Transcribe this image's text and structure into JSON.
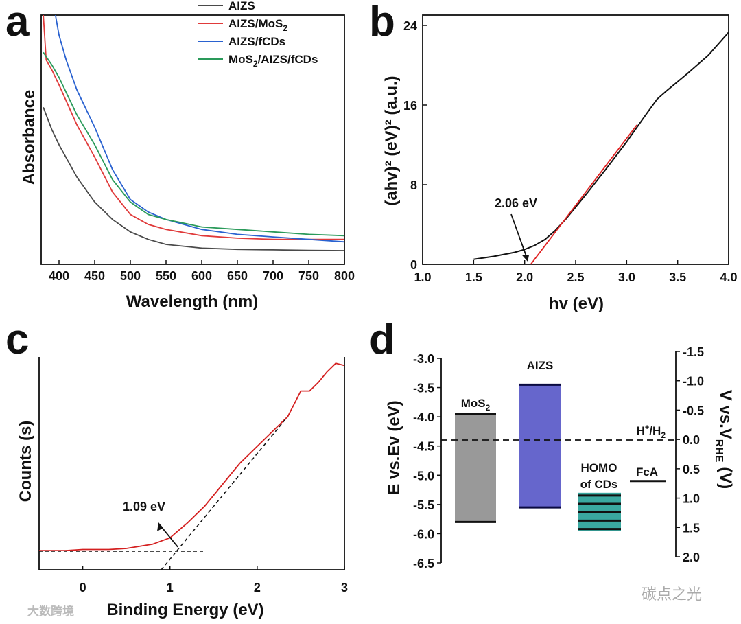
{
  "chart_data": [
    {
      "panel": "a",
      "type": "line",
      "xlabel": "Wavelength (nm)",
      "ylabel": "Absorbance",
      "xlim": [
        375,
        800
      ],
      "ylim": [
        0,
        1
      ],
      "xticks": [
        400,
        450,
        500,
        550,
        600,
        650,
        700,
        750,
        800
      ],
      "legend": {
        "placement": "top-right"
      },
      "series": [
        {
          "name": "AIZS",
          "color": "#4a4a4a",
          "x": [
            378,
            390,
            400,
            425,
            450,
            475,
            500,
            525,
            550,
            600,
            650,
            700,
            750,
            800
          ],
          "y": [
            0.63,
            0.54,
            0.48,
            0.35,
            0.25,
            0.18,
            0.13,
            0.1,
            0.08,
            0.065,
            0.06,
            0.058,
            0.056,
            0.055
          ]
        },
        {
          "name": "AIZS/MoS2",
          "color": "#e03a3a",
          "x": [
            378,
            382,
            390,
            400,
            425,
            450,
            475,
            500,
            525,
            550,
            600,
            650,
            700,
            750,
            800
          ],
          "y": [
            1.0,
            0.82,
            0.78,
            0.72,
            0.56,
            0.43,
            0.29,
            0.2,
            0.16,
            0.14,
            0.115,
            0.105,
            0.1,
            0.1,
            0.1
          ]
        },
        {
          "name": "AIZS/fCDs",
          "color": "#2a62d0",
          "x": [
            395,
            400,
            410,
            425,
            450,
            475,
            500,
            525,
            550,
            600,
            650,
            700,
            750,
            800
          ],
          "y": [
            1.0,
            0.92,
            0.82,
            0.7,
            0.55,
            0.38,
            0.26,
            0.21,
            0.18,
            0.14,
            0.12,
            0.11,
            0.1,
            0.09
          ]
        },
        {
          "name": "MoS2/AIZS/fCDs",
          "color": "#2a9a5a",
          "x": [
            378,
            390,
            400,
            425,
            450,
            475,
            500,
            525,
            550,
            600,
            650,
            700,
            750,
            800
          ],
          "y": [
            0.85,
            0.8,
            0.75,
            0.6,
            0.48,
            0.34,
            0.25,
            0.2,
            0.18,
            0.15,
            0.14,
            0.13,
            0.12,
            0.115
          ]
        }
      ],
      "legend_labels": [
        "AIZS",
        "AIZS/MoS",
        "AIZS/fCDs",
        "MoS",
        "/AIZS/fCDs"
      ]
    },
    {
      "panel": "b",
      "type": "line",
      "xlabel": "hv (eV)",
      "ylabel": "(ahv)² (eV)² (a.u.)",
      "xlim": [
        1.0,
        4.0
      ],
      "ylim": [
        0,
        24
      ],
      "xticks": [
        1.0,
        1.5,
        2.0,
        2.5,
        3.0,
        3.5,
        4.0
      ],
      "yticks": [
        0,
        8,
        16,
        24
      ],
      "series": [
        {
          "name": "data",
          "color": "#111111",
          "x": [
            1.5,
            1.7,
            1.9,
            2.0,
            2.1,
            2.2,
            2.3,
            2.4,
            2.6,
            2.8,
            3.0,
            3.2,
            3.3,
            3.4,
            3.6,
            3.8,
            4.0
          ],
          "y": [
            0.5,
            0.8,
            1.2,
            1.5,
            1.9,
            2.5,
            3.4,
            4.5,
            7.0,
            9.6,
            12.3,
            15.2,
            16.6,
            17.5,
            19.2,
            21.0,
            23.3
          ]
        },
        {
          "name": "fit",
          "color": "#e02020",
          "x": [
            2.06,
            3.1
          ],
          "y": [
            0,
            14
          ]
        }
      ],
      "annotation": {
        "text": "2.06 eV",
        "x": 2.06
      }
    },
    {
      "panel": "c",
      "type": "line",
      "xlabel": "Binding Energy (eV)",
      "ylabel": "Counts (s)",
      "xlim": [
        -0.5,
        3.0
      ],
      "ylim": [
        0,
        1
      ],
      "xticks": [
        0,
        1,
        2,
        3
      ],
      "series": [
        {
          "name": "data",
          "color": "#d42020",
          "x": [
            -0.5,
            -0.2,
            0,
            0.3,
            0.5,
            0.8,
            1.0,
            1.2,
            1.4,
            1.6,
            1.8,
            2.0,
            2.2,
            2.35,
            2.45,
            2.5,
            2.6,
            2.7,
            2.8,
            2.9,
            3.0
          ],
          "y": [
            0.09,
            0.09,
            0.095,
            0.095,
            0.1,
            0.12,
            0.15,
            0.22,
            0.3,
            0.4,
            0.5,
            0.58,
            0.66,
            0.72,
            0.8,
            0.84,
            0.84,
            0.88,
            0.93,
            0.97,
            0.96
          ]
        }
      ],
      "fit_lines": [
        {
          "x": [
            0.9,
            2.35
          ],
          "y": [
            0,
            0.72
          ]
        },
        {
          "x": [
            -0.5,
            1.4
          ],
          "y": [
            0.087,
            0.087
          ]
        }
      ],
      "annotation": {
        "text": "1.09 eV",
        "x": 1.09
      }
    },
    {
      "panel": "d",
      "type": "bar",
      "ylabel": "E vs.Ev (eV)",
      "ylabel_right": "V vs.V",
      "ylabel_right_sub": "RHE",
      "ylabel_right_suffix": " (V)",
      "ylim": [
        -3.0,
        -6.5
      ],
      "yticks": [
        -3.0,
        -3.5,
        -4.0,
        -4.5,
        -5.0,
        -5.5,
        -6.0,
        -6.5
      ],
      "yticks_right": [
        -1.5,
        -1.0,
        -0.5,
        0.0,
        0.5,
        1.0,
        1.5,
        2.0
      ],
      "ylim_right": [
        -1.5,
        2.0
      ],
      "bands": [
        {
          "name": "MoS2",
          "label": "MoS",
          "sub": "2",
          "top": -3.95,
          "bottom": -5.8,
          "color": "#999999"
        },
        {
          "name": "AIZS",
          "label": "AIZS",
          "top": -3.45,
          "bottom": -5.55,
          "color": "#6666cc"
        },
        {
          "name": "HOMO of CDs",
          "label": "HOMO",
          "label2": "of CDs",
          "top": -5.3,
          "bottom": -5.95,
          "color": "#3aa8a0"
        }
      ],
      "levels": [
        {
          "name": "FcA",
          "label": "FcA",
          "value": -5.1
        }
      ],
      "reference": {
        "label": "H",
        "sup": "+",
        "mid": "/H",
        "sub": "2",
        "value": -4.4
      }
    }
  ],
  "panel_labels": [
    "a",
    "b",
    "c",
    "d"
  ],
  "watermarks": [
    "大数跨境",
    "碳点之光"
  ]
}
